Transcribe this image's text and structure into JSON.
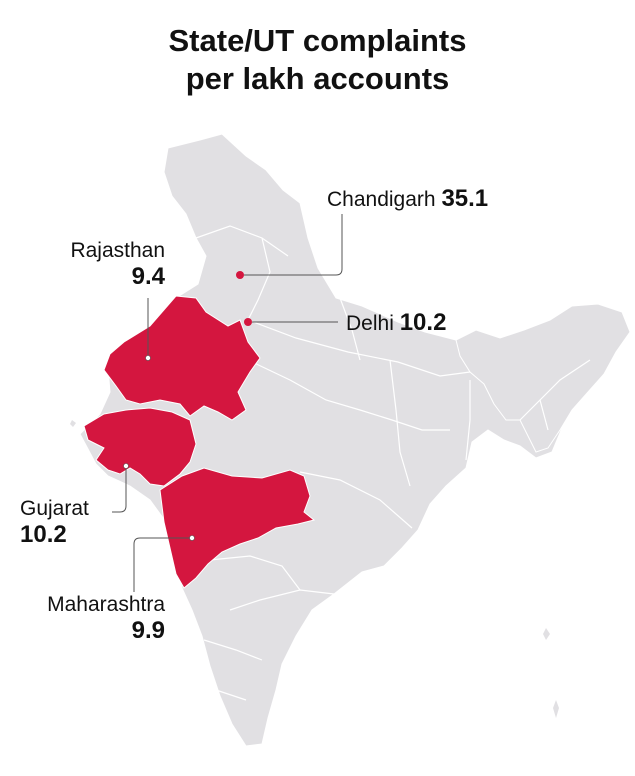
{
  "title": {
    "line1": "State/UT complaints",
    "line2": "per lakh accounts"
  },
  "colors": {
    "highlight": "#d4163f",
    "base": "#e1e0e3",
    "border": "#ffffff",
    "leader": "#555555"
  },
  "labels": {
    "chandigarh": {
      "name": "Chandigarh",
      "value": "35.1"
    },
    "rajasthan": {
      "name": "Rajasthan",
      "value": "9.4"
    },
    "delhi": {
      "name": "Delhi",
      "value": "10.2"
    },
    "gujarat": {
      "name": "Gujarat",
      "value": "10.2"
    },
    "maharashtra": {
      "name": "Maharashtra",
      "value": "9.9"
    }
  }
}
